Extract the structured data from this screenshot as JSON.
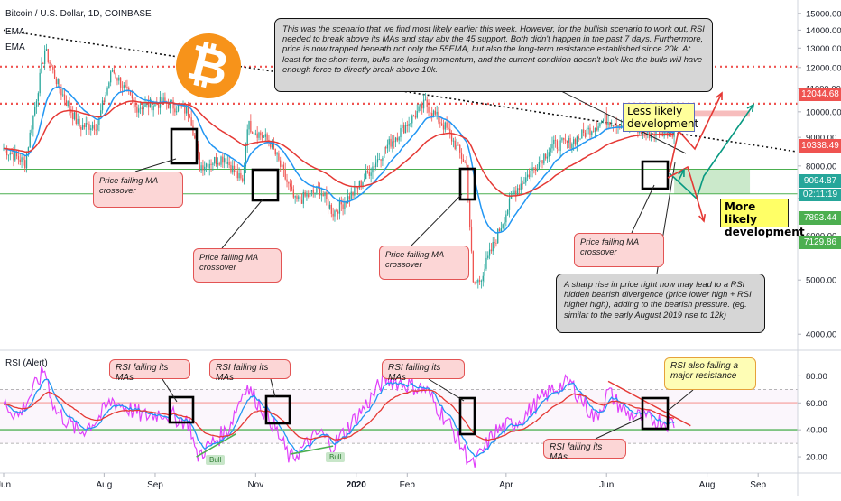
{
  "header": {
    "symbol": "Bitcoin / U.S. Dollar, 1D, COINBASE",
    "ema1": "EMA",
    "ema2": "EMA",
    "rsi_label": "RSI (Alert)"
  },
  "colors": {
    "price_bg": "#ffffff",
    "resistance_red": "#ef5350",
    "support_green": "#4caf50",
    "ema_fast": "#2196f3",
    "ema_slow": "#e53935",
    "rsi_line": "#e040fb",
    "arrow_teal": "#089981",
    "candle_green": "#26a69a",
    "candle_red": "#ef5350",
    "bitcoin_orange": "#f7931a"
  },
  "logo": {
    "icon": "bitcoin-logo-icon"
  },
  "notes": {
    "main": "This was the scenario that we find most likely earlier this week. However, for the bullish scenario to work out, RSI needed to break above its MAs and stay abv the 45 support. Both didn't happen in the past 7 days. Furthermore, price is now trapped beneath not only the 55EMA, but also the long-term resistance established since 20k. At least for the short-term, bulls are losing momentum, and the current condition doesn't look like the bulls will have enough force to directly break above 10k.",
    "sharp_rise": "A sharp rise in price right now may lead to a RSI hidden bearish divergence (price lower high + RSI higher high), adding to the bearish pressure. (eg. similar to the early August 2019 rise to 12k)",
    "ma_fail_1": "Price failing MA crossover",
    "ma_fail_2": "Price failing MA crossover",
    "ma_fail_3": "Price failing MA crossover",
    "ma_fail_4": "Price failing MA crossover",
    "less_likely": "Less likely development",
    "more_likely": "More likely development",
    "rsi_fail_1": "RSI failing its MAs",
    "rsi_fail_2": "RSI failing its MAs",
    "rsi_fail_3": "RSI failing its MAs",
    "rsi_fail_4": "RSI failing its MAs",
    "rsi_resistance": "RSI also failing a major resistance",
    "bull_1": "Bull",
    "bull_2": "Bull"
  },
  "price_tags": {
    "top_resistance": "12044.68",
    "mid_resistance": "10338.49",
    "current_price": "9094.87",
    "countdown": "02:11:19",
    "support_top": "7893.44",
    "support_bottom": "7129.86"
  },
  "chart_data": [
    {
      "type": "candlestick",
      "title": "Bitcoin / U.S. Dollar, 1D, COINBASE",
      "y_scale": "log",
      "ylim": [
        3800,
        15500
      ],
      "y_ticks": [
        15000,
        14000,
        13000,
        12000,
        11000,
        10000,
        9000,
        8000,
        7000,
        6000,
        5000,
        4000
      ],
      "y_tick_labels": [
        "15000.00",
        "14000.00",
        "13000.00",
        "12000.00",
        "11000.00",
        "10000.00",
        "9000.00",
        "8000.00",
        "7000.00",
        "6000.00",
        "5000.00",
        "4000.00"
      ],
      "x_tick_labels": [
        "Jun",
        "Aug",
        "Sep",
        "Nov",
        "2020",
        "Feb",
        "Apr",
        "Jun",
        "Aug",
        "Sep"
      ],
      "x_tick_dates": [
        "2019-06-01",
        "2019-08-01",
        "2019-09-01",
        "2019-11-01",
        "2020-01-01",
        "2020-02-01",
        "2020-04-01",
        "2020-06-01",
        "2020-08-01",
        "2020-09-01"
      ],
      "xlim": [
        "2019-06-01",
        "2020-09-25"
      ],
      "close_anchors": [
        {
          "date": "2019-06-01",
          "value": 8600
        },
        {
          "date": "2019-06-14",
          "value": 8100
        },
        {
          "date": "2019-06-26",
          "value": 12900
        },
        {
          "date": "2019-07-05",
          "value": 11000
        },
        {
          "date": "2019-07-17",
          "value": 9400
        },
        {
          "date": "2019-07-28",
          "value": 9500
        },
        {
          "date": "2019-08-06",
          "value": 11900
        },
        {
          "date": "2019-08-20",
          "value": 10200
        },
        {
          "date": "2019-09-06",
          "value": 10400
        },
        {
          "date": "2019-09-22",
          "value": 10000
        },
        {
          "date": "2019-09-28",
          "value": 8000
        },
        {
          "date": "2019-10-13",
          "value": 8300
        },
        {
          "date": "2019-10-24",
          "value": 7450
        },
        {
          "date": "2019-10-27",
          "value": 9500
        },
        {
          "date": "2019-11-10",
          "value": 8800
        },
        {
          "date": "2019-11-25",
          "value": 6900
        },
        {
          "date": "2019-12-10",
          "value": 7250
        },
        {
          "date": "2019-12-18",
          "value": 6600
        },
        {
          "date": "2019-12-31",
          "value": 7200
        },
        {
          "date": "2020-01-20",
          "value": 8700
        },
        {
          "date": "2020-02-12",
          "value": 10350
        },
        {
          "date": "2020-02-25",
          "value": 9300
        },
        {
          "date": "2020-03-08",
          "value": 8000
        },
        {
          "date": "2020-03-12",
          "value": 4900
        },
        {
          "date": "2020-03-16",
          "value": 5000
        },
        {
          "date": "2020-04-06",
          "value": 7200
        },
        {
          "date": "2020-04-29",
          "value": 8700
        },
        {
          "date": "2020-05-10",
          "value": 8800
        },
        {
          "date": "2020-05-31",
          "value": 9700
        },
        {
          "date": "2020-06-13",
          "value": 9450
        },
        {
          "date": "2020-06-26",
          "value": 9150
        },
        {
          "date": "2020-07-10",
          "value": 9250
        },
        {
          "date": "2020-07-12",
          "value": 9250
        }
      ],
      "ema_fast_name": "EMA",
      "ema_slow_name": "EMA",
      "horizontal_levels": [
        {
          "value": 12044.68,
          "style": "dotted",
          "color": "#ef5350"
        },
        {
          "value": 10338.49,
          "style": "dotted",
          "color": "#ef5350"
        },
        {
          "value": 7893.44,
          "style": "solid",
          "color": "#4caf50"
        },
        {
          "value": 7129.86,
          "style": "solid",
          "color": "#4caf50"
        }
      ],
      "trendline": {
        "from": {
          "date": "2019-06-01",
          "value": 14000
        },
        "to": {
          "date": "2020-09-25",
          "value": 8480
        },
        "style": "dotted"
      },
      "zones": [
        {
          "name": "resistance-zone",
          "from_date": "2020-07-12",
          "to_date": "2020-08-27",
          "low": 9800,
          "high": 10050,
          "color": "#f4a7a7"
        },
        {
          "name": "support-zone",
          "from_date": "2020-07-12",
          "to_date": "2020-08-27",
          "low": 7130,
          "high": 7893,
          "color": "#b9e2b9"
        }
      ]
    },
    {
      "type": "line",
      "title": "RSI (Alert)",
      "ylim": [
        10,
        95
      ],
      "y_ticks": [
        80,
        60,
        40,
        20
      ],
      "y_tick_labels": [
        "80.00",
        "60.00",
        "40.00",
        "20.00"
      ],
      "bands": [
        70,
        30
      ],
      "support_level": 40,
      "resistance_level": 60,
      "rsi_anchors": [
        {
          "date": "2019-06-01",
          "value": 60
        },
        {
          "date": "2019-06-10",
          "value": 50
        },
        {
          "date": "2019-06-26",
          "value": 85
        },
        {
          "date": "2019-07-02",
          "value": 55
        },
        {
          "date": "2019-07-17",
          "value": 38
        },
        {
          "date": "2019-07-28",
          "value": 48
        },
        {
          "date": "2019-08-06",
          "value": 62
        },
        {
          "date": "2019-08-25",
          "value": 50
        },
        {
          "date": "2019-09-06",
          "value": 53
        },
        {
          "date": "2019-09-22",
          "value": 45
        },
        {
          "date": "2019-09-26",
          "value": 20
        },
        {
          "date": "2019-10-15",
          "value": 40
        },
        {
          "date": "2019-10-26",
          "value": 73
        },
        {
          "date": "2019-11-10",
          "value": 48
        },
        {
          "date": "2019-11-22",
          "value": 18
        },
        {
          "date": "2019-12-10",
          "value": 38
        },
        {
          "date": "2019-12-18",
          "value": 28
        },
        {
          "date": "2020-01-08",
          "value": 60
        },
        {
          "date": "2020-01-18",
          "value": 78
        },
        {
          "date": "2020-02-12",
          "value": 70
        },
        {
          "date": "2020-02-26",
          "value": 45
        },
        {
          "date": "2020-03-12",
          "value": 13
        },
        {
          "date": "2020-03-25",
          "value": 38
        },
        {
          "date": "2020-04-10",
          "value": 48
        },
        {
          "date": "2020-04-29",
          "value": 70
        },
        {
          "date": "2020-05-10",
          "value": 75
        },
        {
          "date": "2020-05-25",
          "value": 48
        },
        {
          "date": "2020-06-02",
          "value": 68
        },
        {
          "date": "2020-06-13",
          "value": 52
        },
        {
          "date": "2020-06-26",
          "value": 48
        },
        {
          "date": "2020-07-12",
          "value": 45
        }
      ],
      "trendline": {
        "from": {
          "date": "2020-06-02",
          "value": 76
        },
        "to": {
          "date": "2020-07-22",
          "value": 43
        }
      },
      "bull_lines": [
        {
          "from": {
            "date": "2019-09-26",
            "value": 20
          },
          "to": {
            "date": "2019-10-20",
            "value": 37
          }
        },
        {
          "from": {
            "date": "2019-11-22",
            "value": 22
          },
          "to": {
            "date": "2019-12-18",
            "value": 28
          }
        }
      ]
    }
  ]
}
